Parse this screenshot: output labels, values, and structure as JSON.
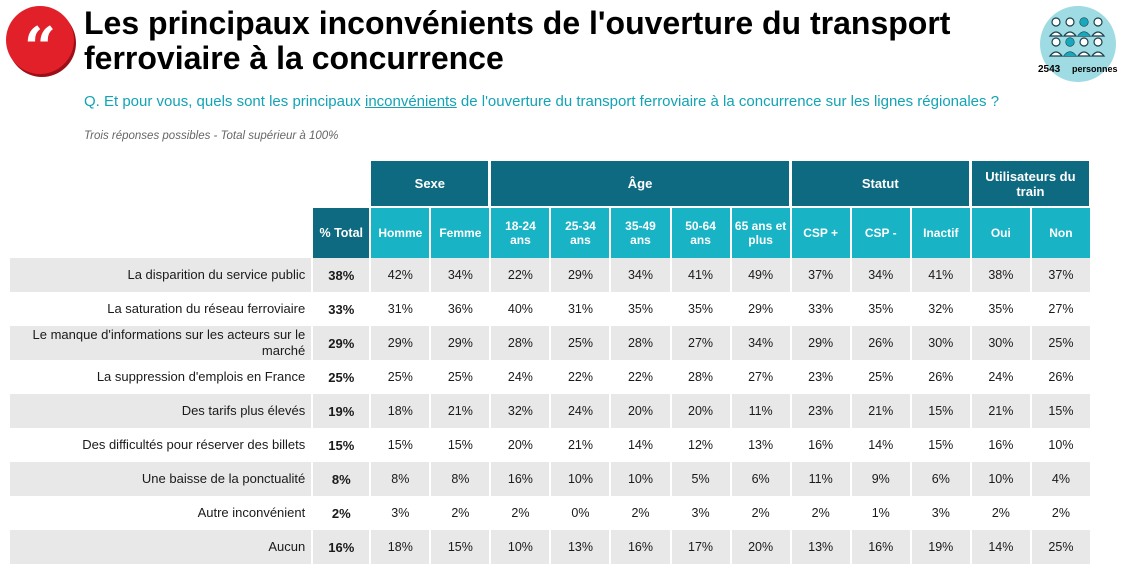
{
  "header": {
    "title": "Les principaux inconvénients de l'ouverture du transport ferroviaire à la concurrence",
    "question_prefix": "Q. Et pour vous, quels sont les principaux ",
    "question_keyword": "inconvénients",
    "question_suffix": " de l'ouverture du transport ferroviaire à la concurrence sur les lignes régionales ?",
    "note": "Trois réponses possibles - Total supérieur à 100%"
  },
  "sample": {
    "count": "2543",
    "unit": "personnes"
  },
  "table": {
    "groups": [
      "Sexe",
      "Âge",
      "Statut",
      "Utilisateurs du train"
    ],
    "total_label": "% Total",
    "subheaders": [
      "Homme",
      "Femme",
      "18-24 ans",
      "25-34 ans",
      "35-49 ans",
      "50-64 ans",
      "65 ans et plus",
      "CSP +",
      "CSP -",
      "Inactif",
      "Oui",
      "Non"
    ],
    "rows": [
      {
        "label": "La disparition du service public",
        "total": "38%",
        "values": [
          "42%",
          "34%",
          "22%",
          "29%",
          "34%",
          "41%",
          "49%",
          "37%",
          "34%",
          "41%",
          "38%",
          "37%"
        ]
      },
      {
        "label": "La saturation du réseau ferroviaire",
        "total": "33%",
        "values": [
          "31%",
          "36%",
          "40%",
          "31%",
          "35%",
          "35%",
          "29%",
          "33%",
          "35%",
          "32%",
          "35%",
          "27%"
        ]
      },
      {
        "label": "Le manque d'informations sur les acteurs sur le marché",
        "total": "29%",
        "values": [
          "29%",
          "29%",
          "28%",
          "25%",
          "28%",
          "27%",
          "34%",
          "29%",
          "26%",
          "30%",
          "30%",
          "25%"
        ]
      },
      {
        "label": "La suppression d'emplois en France",
        "total": "25%",
        "values": [
          "25%",
          "25%",
          "24%",
          "22%",
          "22%",
          "28%",
          "27%",
          "23%",
          "25%",
          "26%",
          "24%",
          "26%"
        ]
      },
      {
        "label": "Des tarifs plus élevés",
        "total": "19%",
        "values": [
          "18%",
          "21%",
          "32%",
          "24%",
          "20%",
          "20%",
          "11%",
          "23%",
          "21%",
          "15%",
          "21%",
          "15%"
        ]
      },
      {
        "label": "Des difficultés pour réserver des billets",
        "total": "15%",
        "values": [
          "15%",
          "15%",
          "20%",
          "21%",
          "14%",
          "12%",
          "13%",
          "16%",
          "14%",
          "15%",
          "16%",
          "10%"
        ]
      },
      {
        "label": "Une baisse de la ponctualité",
        "total": "8%",
        "values": [
          "8%",
          "8%",
          "16%",
          "10%",
          "10%",
          "5%",
          "6%",
          "11%",
          "9%",
          "6%",
          "10%",
          "4%"
        ]
      },
      {
        "label": "Autre inconvénient",
        "total": "2%",
        "values": [
          "3%",
          "2%",
          "2%",
          "0%",
          "2%",
          "3%",
          "2%",
          "2%",
          "1%",
          "3%",
          "2%",
          "2%"
        ]
      },
      {
        "label": "Aucun",
        "total": "16%",
        "values": [
          "18%",
          "15%",
          "10%",
          "13%",
          "16%",
          "17%",
          "20%",
          "13%",
          "16%",
          "19%",
          "14%",
          "25%"
        ]
      }
    ]
  },
  "colors": {
    "group_header": "#0e6a80",
    "sub_header": "#19b3c6",
    "question_text": "#12a3b5",
    "quote_badge": "#e2202a",
    "row_shade": "#e8e8e8",
    "sample_circle": "#9edbe3"
  },
  "icons": {
    "badge": "quote-icon",
    "sample": "people-group-icon"
  }
}
